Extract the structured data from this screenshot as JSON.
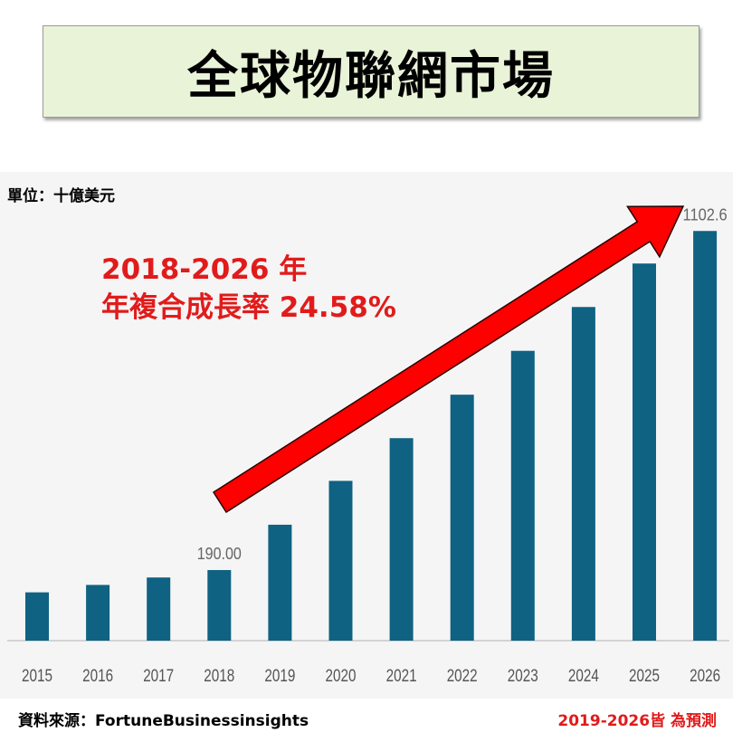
{
  "title": "全球物聯網市場",
  "unit_label": "單位：十億美元",
  "annotation": {
    "line1": "2018-2026 年",
    "line2": "年複合成長率  24.58%"
  },
  "footer": {
    "source": "資料來源：FortuneBusinessinsights",
    "forecast_note": "2019-2026皆 為預測"
  },
  "colors": {
    "bar": "#0f6282",
    "arrow": "#ff0000",
    "annotation_text": "#e11b1b",
    "title_bg": "#e9f3d8",
    "panel_bg": "#f5f5f5"
  },
  "chart_data": {
    "type": "bar",
    "categories": [
      "2015",
      "2016",
      "2017",
      "2018",
      "2019",
      "2020",
      "2021",
      "2022",
      "2023",
      "2024",
      "2025",
      "2026"
    ],
    "values": [
      130,
      150,
      170,
      190.0,
      312,
      430,
      545,
      662,
      780,
      898,
      1015,
      1102.6
    ],
    "data_labels": [
      {
        "category": "2018",
        "text": "190.00"
      },
      {
        "category": "2026",
        "text": "1102.6"
      }
    ],
    "ylim": [
      0,
      1130
    ],
    "grid": false
  }
}
